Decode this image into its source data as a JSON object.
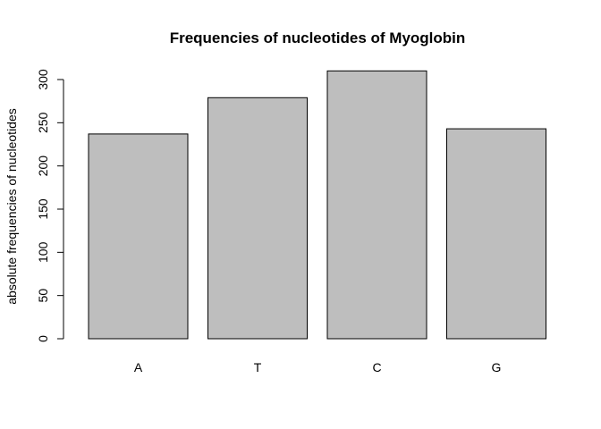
{
  "chart_data": {
    "type": "bar",
    "title": "Frequencies of nucleotides of Myoglobin",
    "xlabel": "",
    "ylabel": "absolute frequencies of nucleotides",
    "categories": [
      "A",
      "T",
      "C",
      "G"
    ],
    "values": [
      237,
      279,
      310,
      243
    ],
    "ylim": [
      0,
      300
    ],
    "yticks": [
      0,
      50,
      100,
      150,
      200,
      250,
      300
    ],
    "ytick_labels": [
      "0",
      "50",
      "100",
      "150",
      "200",
      "250",
      "300"
    ],
    "grid": false,
    "legend": "none",
    "colors": {
      "bar_fill": "#bebebe",
      "bar_stroke": "#000000",
      "axis": "#000000"
    }
  }
}
